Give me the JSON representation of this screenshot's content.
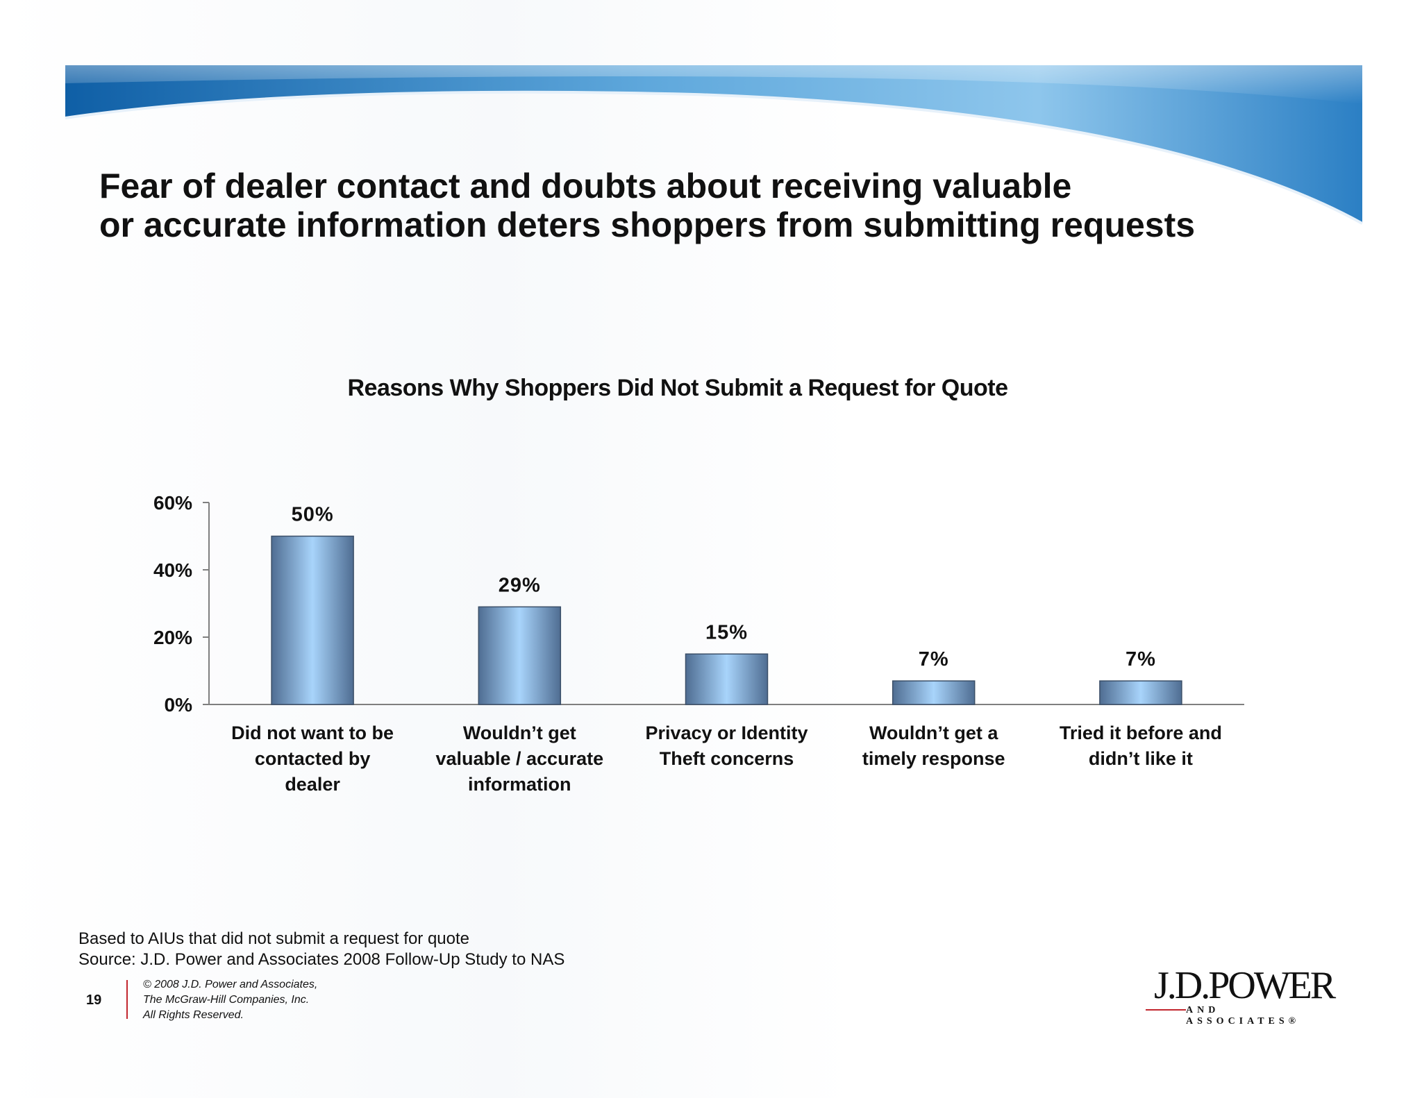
{
  "slide": {
    "title_lines": [
      "Fear of dealer contact and doubts about receiving valuable",
      "or accurate information deters shoppers from submitting requests"
    ],
    "footnotes": [
      "Based to AIUs that did not submit a request for quote",
      "Source: J.D. Power and Associates 2008 Follow-Up Study to NAS"
    ],
    "page_number": "19",
    "copyright_lines": [
      "© 2008 J.D. Power and Associates,",
      "The McGraw-Hill Companies, Inc.",
      "All Rights Reserved."
    ],
    "logo": {
      "main": "J.D.POWER",
      "sub": "AND ASSOCIATES®"
    },
    "colors": {
      "banner": "#1a6fb8",
      "bar_light": "#a8d4fb",
      "bar_dark": "#4f6d92",
      "accent_red": "#c2262e"
    }
  },
  "chart_data": {
    "type": "bar",
    "title": "Reasons Why Shoppers Did Not Submit a Request for Quote",
    "categories": [
      [
        "Did not want to be",
        "contacted by",
        "dealer"
      ],
      [
        "Wouldn’t get",
        "valuable / accurate",
        "information"
      ],
      [
        "Privacy or Identity",
        "Theft concerns"
      ],
      [
        "Wouldn’t get a",
        "timely response"
      ],
      [
        "Tried it before and",
        "didn’t like it"
      ]
    ],
    "values": [
      50,
      29,
      15,
      7,
      7
    ],
    "data_labels": [
      "50%",
      "29%",
      "15%",
      "7%",
      "7%"
    ],
    "yticks": [
      "0%",
      "20%",
      "40%",
      "60%"
    ],
    "ylim": [
      0,
      60
    ],
    "xlabel": "",
    "ylabel": "",
    "grid": false,
    "legend": "none"
  }
}
